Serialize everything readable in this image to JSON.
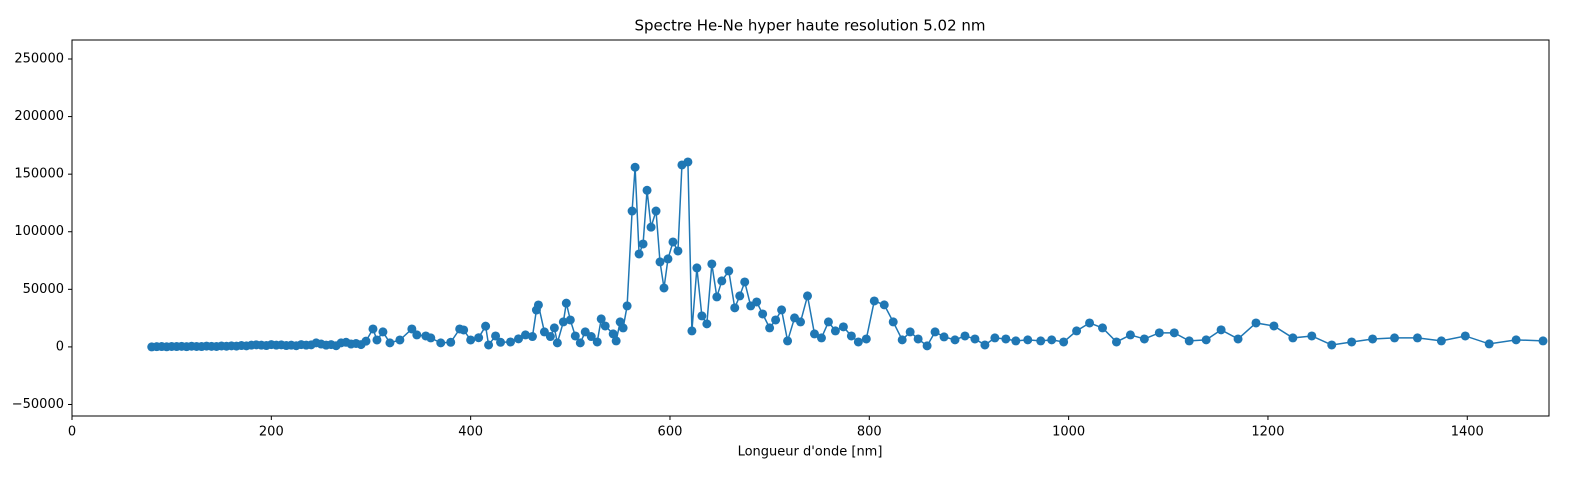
{
  "chart_data": {
    "type": "line",
    "title": "Spectre He-Ne hyper haute resolution 5.02 nm",
    "x_label": "Longueur d'onde [nm]",
    "color": "#1f77b4",
    "markers": true,
    "x": [
      80,
      85,
      90,
      95,
      100,
      105,
      110,
      115,
      120,
      125,
      130,
      135,
      140,
      145,
      150,
      155,
      160,
      165,
      170,
      175,
      180,
      185,
      190,
      195,
      200,
      205,
      210,
      215,
      220,
      225,
      230,
      235,
      240,
      245,
      250,
      255,
      260,
      265,
      270,
      275,
      280,
      285,
      290,
      295,
      302,
      306,
      312,
      319,
      329,
      341,
      346,
      355,
      360,
      370,
      380,
      389,
      393,
      400,
      408,
      415,
      418,
      425,
      430,
      440,
      448,
      455,
      462,
      466,
      468,
      474,
      480,
      484,
      487,
      493,
      496,
      500,
      505,
      510,
      515,
      521,
      527,
      531,
      535,
      543,
      546,
      550,
      553,
      557,
      562,
      565,
      569,
      573,
      577,
      581,
      586,
      590,
      594,
      598,
      603,
      608,
      612,
      618,
      622,
      627,
      632,
      637,
      642,
      647,
      652,
      659,
      665,
      670,
      675,
      681,
      687,
      693,
      700,
      706,
      712,
      718,
      725,
      731,
      738,
      745,
      752,
      759,
      766,
      774,
      782,
      789,
      797,
      805,
      815,
      824,
      833,
      841,
      849,
      858,
      866,
      875,
      886,
      896,
      906,
      916,
      926,
      937,
      947,
      959,
      972,
      983,
      995,
      1008,
      1021,
      1034,
      1048,
      1062,
      1076,
      1091,
      1106,
      1121,
      1138,
      1153,
      1170,
      1188,
      1206,
      1225,
      1244,
      1264,
      1284,
      1305,
      1327,
      1350,
      1374,
      1398,
      1422,
      1449,
      1476
    ],
    "values": [
      0,
      200,
      300,
      100,
      400,
      300,
      500,
      200,
      600,
      400,
      300,
      700,
      500,
      400,
      800,
      600,
      900,
      700,
      1200,
      900,
      1500,
      1800,
      1500,
      1200,
      2000,
      1500,
      1800,
      1200,
      1500,
      1000,
      2000,
      1500,
      1800,
      3500,
      2500,
      1500,
      2000,
      1000,
      3500,
      4000,
      2500,
      3000,
      2000,
      5000,
      15600,
      6000,
      13000,
      3500,
      6000,
      15600,
      10400,
      9500,
      7800,
      3500,
      4000,
      15600,
      14700,
      6000,
      8000,
      18000,
      1700,
      9500,
      4000,
      4300,
      7000,
      10400,
      9000,
      32000,
      36400,
      13000,
      9000,
      16500,
      3500,
      21700,
      38000,
      23400,
      9500,
      3500,
      13000,
      9000,
      4300,
      24300,
      18200,
      11300,
      5200,
      21700,
      16500,
      35600,
      118000,
      156000,
      80700,
      89400,
      136000,
      104000,
      118000,
      73800,
      51200,
      76400,
      91100,
      83300,
      158000,
      160600,
      13900,
      68600,
      26900,
      20000,
      72000,
      43400,
      57300,
      66000,
      33900,
      44300,
      56400,
      35600,
      39000,
      28600,
      16500,
      23400,
      32100,
      5200,
      25200,
      21700,
      44300,
      11300,
      7800,
      21700,
      13900,
      17400,
      9500,
      4300,
      6900,
      39900,
      36500,
      21700,
      6100,
      13000,
      6900,
      900,
      13000,
      8700,
      6100,
      9500,
      6900,
      1700,
      7800,
      6900,
      5200,
      6100,
      5200,
      6100,
      4300,
      13900,
      20800,
      16500,
      4300,
      10400,
      6900,
      12200,
      12200,
      5200,
      6100,
      14800,
      6900,
      20800,
      18200,
      7800,
      9500,
      1700,
      4300,
      6900,
      7800,
      7800,
      5200,
      9500,
      2600,
      6100,
      5200
    ],
    "xlim": [
      0,
      1482
    ],
    "ylim": [
      -60000,
      266500
    ],
    "xticks": [
      0,
      200,
      400,
      600,
      800,
      1000,
      1200,
      1400
    ],
    "yticks": [
      {
        "value": -50000,
        "label": "−50000"
      },
      0,
      50000,
      100000,
      150000,
      200000,
      250000
    ]
  }
}
